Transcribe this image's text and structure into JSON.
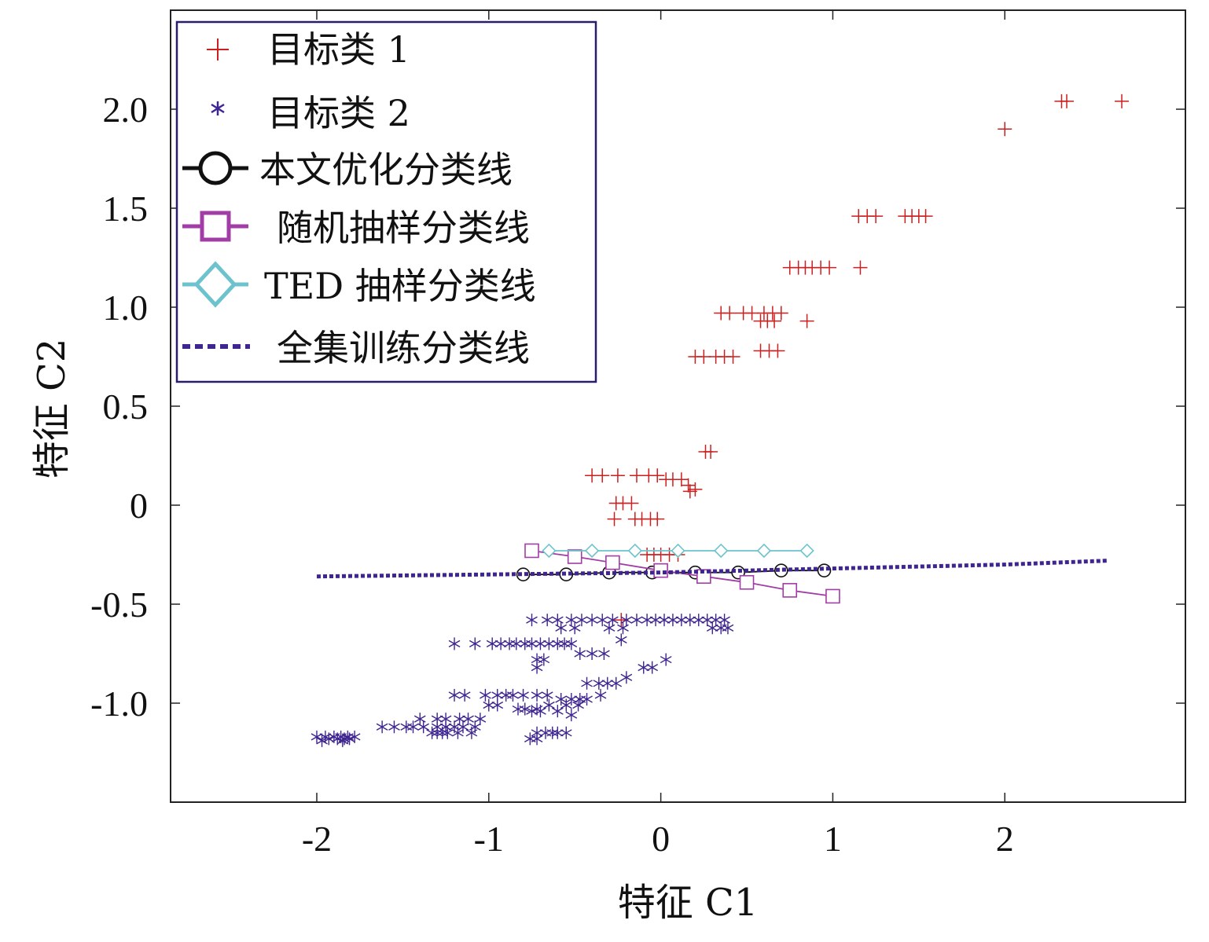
{
  "chart_data": {
    "type": "scatter",
    "xlabel": "特征 C1",
    "ylabel": "特征 C2",
    "xlim": [
      -2.85,
      3.05
    ],
    "ylim": [
      -1.5,
      2.5
    ],
    "xticks": [
      -2,
      -1,
      0,
      1,
      2
    ],
    "xtick_labels": [
      "-2",
      "-1",
      "0",
      "1",
      "2"
    ],
    "yticks": [
      -1.0,
      -0.5,
      0,
      0.5,
      1.0,
      1.5,
      2.0
    ],
    "ytick_labels": [
      "-1.0",
      "-0.5",
      "0",
      "0.5",
      "1.0",
      "1.5",
      "2.0"
    ],
    "grid": false,
    "legend_position": "top-left",
    "series": [
      {
        "name": "目标类 1",
        "kind": "points",
        "marker": "plus",
        "color": "#cc1f1f",
        "points": [
          [
            2.0,
            1.9
          ],
          [
            2.33,
            2.04
          ],
          [
            2.36,
            2.04
          ],
          [
            2.68,
            2.04
          ],
          [
            1.15,
            1.46
          ],
          [
            1.2,
            1.46
          ],
          [
            1.25,
            1.46
          ],
          [
            1.42,
            1.46
          ],
          [
            1.46,
            1.46
          ],
          [
            1.5,
            1.46
          ],
          [
            1.54,
            1.46
          ],
          [
            0.75,
            1.2
          ],
          [
            0.8,
            1.2
          ],
          [
            0.84,
            1.2
          ],
          [
            0.88,
            1.2
          ],
          [
            0.93,
            1.2
          ],
          [
            0.98,
            1.2
          ],
          [
            1.16,
            1.2
          ],
          [
            0.35,
            0.97
          ],
          [
            0.4,
            0.97
          ],
          [
            0.48,
            0.97
          ],
          [
            0.53,
            0.97
          ],
          [
            0.6,
            0.97
          ],
          [
            0.65,
            0.97
          ],
          [
            0.7,
            0.97
          ],
          [
            0.58,
            0.93
          ],
          [
            0.62,
            0.93
          ],
          [
            0.66,
            0.93
          ],
          [
            0.85,
            0.93
          ],
          [
            0.2,
            0.75
          ],
          [
            0.25,
            0.75
          ],
          [
            0.32,
            0.75
          ],
          [
            0.37,
            0.75
          ],
          [
            0.42,
            0.75
          ],
          [
            0.58,
            0.78
          ],
          [
            0.63,
            0.78
          ],
          [
            0.68,
            0.78
          ],
          [
            0.26,
            0.27
          ],
          [
            0.29,
            0.27
          ],
          [
            -0.4,
            0.15
          ],
          [
            -0.34,
            0.15
          ],
          [
            -0.25,
            0.15
          ],
          [
            -0.14,
            0.15
          ],
          [
            -0.07,
            0.15
          ],
          [
            -0.02,
            0.15
          ],
          [
            0.03,
            0.13
          ],
          [
            0.07,
            0.13
          ],
          [
            0.12,
            0.13
          ],
          [
            0.16,
            0.1
          ],
          [
            0.2,
            0.08
          ],
          [
            0.17,
            0.07
          ],
          [
            -0.26,
            0.01
          ],
          [
            -0.22,
            0.01
          ],
          [
            -0.17,
            0.01
          ],
          [
            -0.27,
            -0.07
          ],
          [
            -0.15,
            -0.07
          ],
          [
            -0.11,
            -0.07
          ],
          [
            -0.06,
            -0.07
          ],
          [
            -0.02,
            -0.07
          ],
          [
            -0.08,
            -0.25
          ],
          [
            -0.04,
            -0.25
          ],
          [
            0.0,
            -0.25
          ],
          [
            0.05,
            -0.25
          ],
          [
            0.1,
            -0.25
          ],
          [
            -0.23,
            -0.58
          ]
        ]
      },
      {
        "name": "目标类 2",
        "kind": "points",
        "marker": "asterisk",
        "color": "#3e2590",
        "points": [
          [
            -0.75,
            -0.58
          ],
          [
            -0.66,
            -0.58
          ],
          [
            -0.6,
            -0.58
          ],
          [
            -0.52,
            -0.58
          ],
          [
            -0.46,
            -0.58
          ],
          [
            -0.4,
            -0.58
          ],
          [
            -0.34,
            -0.58
          ],
          [
            -0.28,
            -0.58
          ],
          [
            -0.2,
            -0.58
          ],
          [
            -0.14,
            -0.58
          ],
          [
            -0.08,
            -0.58
          ],
          [
            -0.03,
            -0.58
          ],
          [
            0.02,
            -0.58
          ],
          [
            0.07,
            -0.58
          ],
          [
            0.12,
            -0.58
          ],
          [
            0.17,
            -0.58
          ],
          [
            0.22,
            -0.58
          ],
          [
            0.27,
            -0.58
          ],
          [
            0.32,
            -0.58
          ],
          [
            0.37,
            -0.58
          ],
          [
            -0.58,
            -0.62
          ],
          [
            -0.5,
            -0.62
          ],
          [
            -0.3,
            -0.62
          ],
          [
            -0.22,
            -0.62
          ],
          [
            0.3,
            -0.62
          ],
          [
            0.35,
            -0.62
          ],
          [
            0.39,
            -0.62
          ],
          [
            -1.2,
            -0.7
          ],
          [
            -1.08,
            -0.7
          ],
          [
            -0.98,
            -0.7
          ],
          [
            -0.93,
            -0.7
          ],
          [
            -0.88,
            -0.7
          ],
          [
            -0.84,
            -0.7
          ],
          [
            -0.79,
            -0.7
          ],
          [
            -0.75,
            -0.7
          ],
          [
            -0.7,
            -0.7
          ],
          [
            -0.65,
            -0.7
          ],
          [
            -0.6,
            -0.7
          ],
          [
            -0.56,
            -0.7
          ],
          [
            -0.52,
            -0.7
          ],
          [
            -0.23,
            -0.68
          ],
          [
            -0.47,
            -0.75
          ],
          [
            -0.4,
            -0.75
          ],
          [
            -0.33,
            -0.75
          ],
          [
            -0.72,
            -0.78
          ],
          [
            -0.68,
            -0.78
          ],
          [
            -0.72,
            -0.82
          ],
          [
            -0.1,
            -0.82
          ],
          [
            -0.05,
            -0.82
          ],
          [
            0.03,
            -0.78
          ],
          [
            -0.2,
            -0.87
          ],
          [
            -0.43,
            -0.9
          ],
          [
            -0.36,
            -0.9
          ],
          [
            -0.31,
            -0.9
          ],
          [
            -0.26,
            -0.9
          ],
          [
            -1.2,
            -0.96
          ],
          [
            -1.14,
            -0.96
          ],
          [
            -1.02,
            -0.96
          ],
          [
            -0.95,
            -0.96
          ],
          [
            -0.9,
            -0.96
          ],
          [
            -0.86,
            -0.96
          ],
          [
            -0.8,
            -0.96
          ],
          [
            -0.72,
            -0.96
          ],
          [
            -0.66,
            -0.96
          ],
          [
            -0.58,
            -0.98
          ],
          [
            -0.52,
            -0.98
          ],
          [
            -0.47,
            -0.98
          ],
          [
            -0.43,
            -0.98
          ],
          [
            -0.35,
            -0.96
          ],
          [
            -1.0,
            -1.01
          ],
          [
            -0.95,
            -1.01
          ],
          [
            -0.65,
            -1.01
          ],
          [
            -0.55,
            -1.01
          ],
          [
            -0.48,
            -1.01
          ],
          [
            -0.83,
            -1.03
          ],
          [
            -0.79,
            -1.03
          ],
          [
            -0.72,
            -1.03
          ],
          [
            -0.75,
            -1.04
          ],
          [
            -0.7,
            -1.04
          ],
          [
            -0.6,
            -1.04
          ],
          [
            -0.52,
            -1.06
          ],
          [
            -1.4,
            -1.08
          ],
          [
            -1.3,
            -1.08
          ],
          [
            -1.25,
            -1.08
          ],
          [
            -1.17,
            -1.08
          ],
          [
            -1.12,
            -1.08
          ],
          [
            -1.05,
            -1.08
          ],
          [
            -1.62,
            -1.12
          ],
          [
            -1.55,
            -1.12
          ],
          [
            -1.48,
            -1.12
          ],
          [
            -1.44,
            -1.12
          ],
          [
            -1.38,
            -1.12
          ],
          [
            -1.3,
            -1.12
          ],
          [
            -1.25,
            -1.12
          ],
          [
            -1.2,
            -1.12
          ],
          [
            -1.15,
            -1.12
          ],
          [
            -1.08,
            -1.12
          ],
          [
            -1.33,
            -1.15
          ],
          [
            -1.3,
            -1.15
          ],
          [
            -1.27,
            -1.15
          ],
          [
            -1.24,
            -1.15
          ],
          [
            -1.18,
            -1.15
          ],
          [
            -1.1,
            -1.15
          ],
          [
            -0.72,
            -1.15
          ],
          [
            -0.67,
            -1.15
          ],
          [
            -0.63,
            -1.15
          ],
          [
            -0.6,
            -1.15
          ],
          [
            -0.55,
            -1.15
          ],
          [
            -0.76,
            -1.18
          ],
          [
            -0.72,
            -1.18
          ],
          [
            -2.0,
            -1.17
          ],
          [
            -1.95,
            -1.17
          ],
          [
            -1.9,
            -1.17
          ],
          [
            -1.86,
            -1.17
          ],
          [
            -1.82,
            -1.17
          ],
          [
            -1.78,
            -1.17
          ],
          [
            -1.93,
            -1.18
          ],
          [
            -1.88,
            -1.18
          ],
          [
            -1.84,
            -1.18
          ],
          [
            -1.81,
            -1.18
          ],
          [
            -1.97,
            -1.19
          ],
          [
            -1.85,
            -1.19
          ]
        ]
      },
      {
        "name": "本文优化分类线",
        "kind": "line",
        "marker": "circle",
        "color": "#111111",
        "points": [
          [
            -0.8,
            -0.35
          ],
          [
            -0.55,
            -0.35
          ],
          [
            -0.3,
            -0.34
          ],
          [
            -0.05,
            -0.34
          ],
          [
            0.2,
            -0.34
          ],
          [
            0.45,
            -0.34
          ],
          [
            0.7,
            -0.33
          ],
          [
            0.95,
            -0.33
          ]
        ]
      },
      {
        "name": "随机抽样分类线",
        "kind": "line",
        "marker": "square",
        "color": "#a23ca6",
        "points": [
          [
            -0.75,
            -0.23
          ],
          [
            -0.5,
            -0.26
          ],
          [
            -0.28,
            -0.29
          ],
          [
            0.0,
            -0.33
          ],
          [
            0.25,
            -0.36
          ],
          [
            0.5,
            -0.39
          ],
          [
            0.75,
            -0.43
          ],
          [
            1.0,
            -0.46
          ]
        ]
      },
      {
        "name": "TED 抽样分类线",
        "kind": "line",
        "marker": "diamond",
        "color": "#6cc3cd",
        "points": [
          [
            -0.65,
            -0.23
          ],
          [
            -0.4,
            -0.23
          ],
          [
            -0.15,
            -0.23
          ],
          [
            0.1,
            -0.23
          ],
          [
            0.35,
            -0.23
          ],
          [
            0.6,
            -0.23
          ],
          [
            0.85,
            -0.23
          ]
        ]
      },
      {
        "name": "全集训练分类线",
        "kind": "line",
        "marker": "none",
        "dashed": true,
        "color": "#3e2590",
        "points": [
          [
            -2.0,
            -0.36
          ],
          [
            -1.0,
            -0.35
          ],
          [
            0.0,
            -0.34
          ],
          [
            0.5,
            -0.33
          ],
          [
            1.0,
            -0.32
          ],
          [
            1.5,
            -0.31
          ],
          [
            2.0,
            -0.3
          ],
          [
            2.6,
            -0.28
          ]
        ]
      }
    ]
  }
}
